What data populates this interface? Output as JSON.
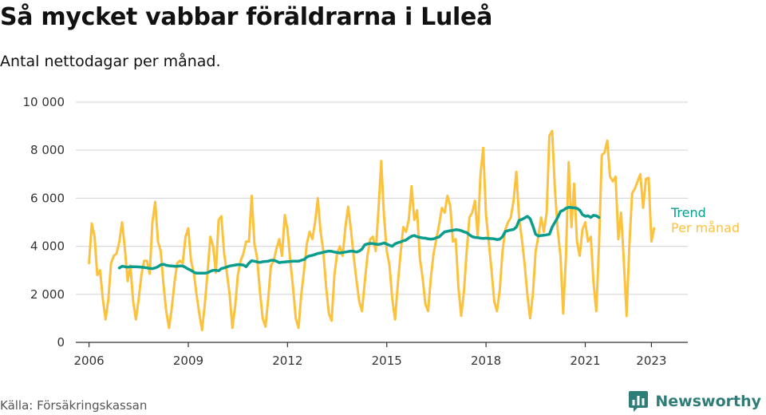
{
  "title": "Så mycket vabbar föräldrarna i Luleå",
  "subtitle": "Antal nettodagar per månad.",
  "source": "Källa: Försäkringskassan",
  "brand": "Newsworthy",
  "colors": {
    "trend": "#0a9c8c",
    "monthly": "#fcc23e",
    "grid": "#d9d9d9",
    "axis": "#333333",
    "brand": "#2f7d78"
  },
  "chart_data": {
    "type": "line",
    "x_unit": "year",
    "ylim": [
      0,
      10000
    ],
    "xlim": [
      2005.6,
      2024.1
    ],
    "yticks": [
      0,
      2000,
      4000,
      6000,
      8000,
      10000
    ],
    "ytick_labels": [
      "0",
      "2 000",
      "4 000",
      "6 000",
      "8 000",
      "10 000"
    ],
    "xticks": [
      2006,
      2009,
      2012,
      2015,
      2018,
      2021,
      2023
    ],
    "xtick_labels": [
      "2006",
      "2009",
      "2012",
      "2015",
      "2018",
      "2021",
      "2023"
    ],
    "grid": true,
    "legend": "right-end labels",
    "series": [
      {
        "name": "Per månad",
        "key": "monthly",
        "x_start": 2006.0,
        "x_step": 0.08333,
        "values": [
          3300,
          4950,
          4400,
          2800,
          3000,
          1800,
          950,
          1800,
          3300,
          3600,
          3700,
          4200,
          5000,
          3900,
          2550,
          3200,
          1700,
          950,
          1800,
          2800,
          3400,
          3400,
          2850,
          5000,
          5850,
          4200,
          3800,
          2400,
          1300,
          600,
          1400,
          2500,
          3300,
          3400,
          3300,
          4400,
          4750,
          3400,
          2900,
          2000,
          1200,
          500,
          1600,
          2900,
          4400,
          4000,
          2900,
          5100,
          5250,
          3700,
          2900,
          2000,
          600,
          1500,
          2800,
          3400,
          3700,
          4200,
          4200,
          6100,
          4100,
          3500,
          2100,
          1000,
          650,
          1800,
          3200,
          3400,
          3900,
          4300,
          3600,
          5300,
          4700,
          3400,
          2300,
          1000,
          600,
          2000,
          3000,
          4100,
          4600,
          4300,
          5000,
          6000,
          4600,
          3800,
          2300,
          1200,
          900,
          2800,
          3700,
          4000,
          3600,
          4800,
          5650,
          4700,
          3600,
          2600,
          1700,
          1300,
          2500,
          3600,
          4300,
          4400,
          3800,
          5500,
          7550,
          5300,
          3800,
          3200,
          1800,
          950,
          2400,
          3700,
          4800,
          4600,
          5100,
          6500,
          5100,
          5500,
          3500,
          2700,
          1600,
          1300,
          2700,
          3700,
          4300,
          4900,
          5600,
          5400,
          6100,
          5700,
          4200,
          4300,
          2300,
          1100,
          2100,
          3800,
          5200,
          5400,
          5900,
          4400,
          7000,
          8100,
          5300,
          4200,
          3000,
          1700,
          1300,
          2200,
          3800,
          4700,
          5000,
          5200,
          5900,
          7100,
          5200,
          4300,
          3300,
          2000,
          1000,
          2000,
          3800,
          4400,
          5200,
          4600,
          5400,
          8600,
          8800,
          6400,
          4700,
          3600,
          1200,
          3600,
          7500,
          4800,
          6600,
          4200,
          3600,
          4700,
          5000,
          4200,
          4400,
          2500,
          1300,
          4000,
          7800,
          7900,
          8400,
          6900,
          6700,
          6900,
          4300,
          5400,
          3400,
          1100,
          4000,
          6200,
          6400,
          6700,
          7000,
          5600,
          6800,
          6850,
          4200,
          4750
        ]
      },
      {
        "name": "Trend",
        "key": "trend",
        "x_start": 2006.917,
        "x_step": 0.08333,
        "values": [
          3100,
          3170,
          3150,
          3130,
          3150,
          3150,
          3150,
          3140,
          3130,
          3120,
          3100,
          3080,
          3070,
          3100,
          3150,
          3230,
          3250,
          3210,
          3190,
          3180,
          3170,
          3170,
          3180,
          3180,
          3120,
          3050,
          3000,
          2920,
          2880,
          2880,
          2880,
          2880,
          2900,
          2960,
          3000,
          3000,
          2980,
          3070,
          3100,
          3140,
          3180,
          3200,
          3220,
          3240,
          3230,
          3220,
          3150,
          3300,
          3400,
          3380,
          3350,
          3330,
          3360,
          3370,
          3380,
          3420,
          3420,
          3380,
          3320,
          3340,
          3350,
          3360,
          3370,
          3380,
          3380,
          3380,
          3420,
          3450,
          3550,
          3600,
          3620,
          3660,
          3700,
          3720,
          3750,
          3780,
          3800,
          3790,
          3760,
          3740,
          3720,
          3740,
          3760,
          3780,
          3800,
          3790,
          3760,
          3800,
          3880,
          4060,
          4100,
          4120,
          4110,
          4090,
          4080,
          4100,
          4140,
          4090,
          4040,
          4000,
          4100,
          4150,
          4180,
          4230,
          4260,
          4350,
          4420,
          4450,
          4400,
          4370,
          4350,
          4340,
          4310,
          4300,
          4310,
          4360,
          4390,
          4500,
          4600,
          4620,
          4650,
          4660,
          4690,
          4680,
          4650,
          4600,
          4570,
          4480,
          4400,
          4370,
          4360,
          4340,
          4330,
          4340,
          4330,
          4320,
          4310,
          4280,
          4300,
          4400,
          4620,
          4650,
          4680,
          4700,
          4800,
          5080,
          5120,
          5180,
          5250,
          5150,
          4850,
          4500,
          4430,
          4450,
          4460,
          4480,
          4500,
          4800,
          5000,
          5200,
          5450,
          5500,
          5580,
          5620,
          5610,
          5600,
          5580,
          5500,
          5320,
          5250,
          5270,
          5200,
          5290,
          5270,
          5200
        ]
      }
    ]
  }
}
